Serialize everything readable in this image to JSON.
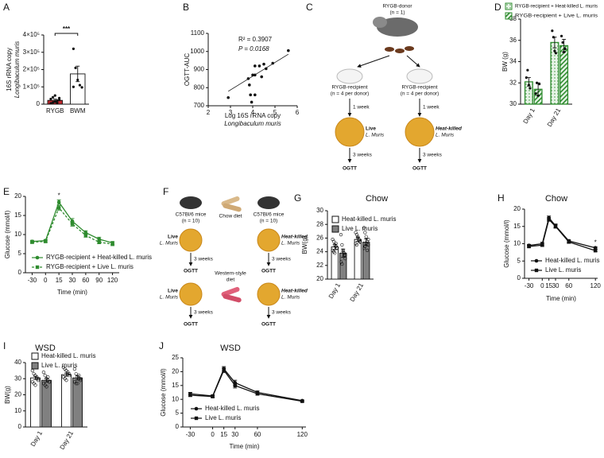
{
  "chart_data": [
    {
      "panel": "A",
      "type": "bar",
      "y_label": "16S rRNA copy",
      "y_label_2": "Longibaculum muris",
      "categories": [
        "RYGB",
        "BWM"
      ],
      "values": [
        22000,
        175000
      ],
      "errors": [
        7000,
        45000
      ],
      "colors": [
        "#c0282d",
        "#ffffff"
      ],
      "points": [
        [
          5000,
          10000,
          15000,
          20000,
          25000,
          30000,
          40000,
          50000,
          8000,
          35000
        ],
        [
          320000,
          210000,
          140000,
          110000,
          97000,
          100000
        ]
      ],
      "ylim": [
        0,
        400000
      ],
      "yticks": [
        0,
        {
          "value": 100000,
          "label": "1×10⁵"
        },
        {
          "value": 200000,
          "label": "2×10⁵"
        },
        {
          "value": 300000,
          "label": "3×10⁵"
        },
        {
          "value": 400000,
          "label": "4×10⁵"
        }
      ],
      "significance": {
        "text": "***"
      }
    },
    {
      "panel": "B",
      "type": "scatter",
      "x_label": "Log 16S rRNA copy",
      "x_label_2": "Longibaculum muris",
      "y_label": "OGTT-AUC",
      "x": [
        2.9,
        3.8,
        3.85,
        3.9,
        3.95,
        4.0,
        4.1,
        4.1,
        4.3,
        4.5,
        4.4,
        4.6,
        4.9,
        5.6,
        4.1
      ],
      "y": [
        745,
        850,
        815,
        760,
        720,
        870,
        870,
        920,
        920,
        930,
        860,
        905,
        935,
        1005,
        760
      ],
      "fit": {
        "x": [
          2.9,
          5.6
        ],
        "y": [
          780,
          985
        ]
      },
      "annotations": [
        "R² = 0.3907",
        "P = 0.0168"
      ],
      "xlim": [
        2,
        6
      ],
      "xticks": [
        2,
        3,
        4,
        5,
        6
      ],
      "ylim": [
        700,
        1100
      ],
      "yticks": [
        700,
        800,
        900,
        1000,
        1100
      ]
    },
    {
      "panel": "D",
      "type": "bar",
      "y_label": "BW (g)",
      "categories": [
        "Day 1",
        "Day 21"
      ],
      "series": [
        {
          "name": "RYGB-recipient + Heat-killed L. muris",
          "color": "#2e8b2e",
          "fill_style": "dots",
          "values": [
            32.1,
            35.8
          ],
          "errors": [
            0.4,
            0.5
          ],
          "points": [
            [
              32.5,
              33.2,
              31.8,
              31.5
            ],
            [
              36.9,
              36.3,
              35.0,
              34.8
            ]
          ]
        },
        {
          "name": "RYGB-recipient + Live L. muris",
          "color": "#2e8b2e",
          "fill_style": "hatch",
          "values": [
            31.4,
            35.5
          ],
          "errors": [
            0.6,
            0.6
          ],
          "points": [
            [
              31.0,
              32.0,
              30.8,
              31.9
            ],
            [
              36.4,
              35.8,
              34.9,
              35.2
            ]
          ]
        }
      ],
      "ylim": [
        30,
        38
      ],
      "yticks": [
        30,
        32,
        34,
        36,
        38
      ]
    },
    {
      "panel": "E",
      "type": "line",
      "y_label": "Glucose (mmol/l)",
      "x_label": "Time (min)",
      "categories": [
        "-30",
        "0",
        "15",
        "30",
        "60",
        "90",
        "120"
      ],
      "series": [
        {
          "name": "RYGB-recipient + Heat-killed L. muris",
          "color": "#2e8b2e",
          "marker": "circle",
          "dashed": false,
          "values": [
            8.2,
            8.4,
            18.5,
            13.5,
            10.5,
            8.8,
            7.8
          ],
          "errors": [
            0.3,
            0.3,
            0.6,
            0.7,
            0.5,
            0.5,
            0.4
          ]
        },
        {
          "name": "RYGB-recipient + Live L. muris",
          "color": "#2e8b2e",
          "marker": "square",
          "dashed": true,
          "values": [
            8.0,
            8.2,
            17.0,
            12.8,
            9.8,
            8.0,
            7.5
          ],
          "errors": [
            0.3,
            0.3,
            0.6,
            0.6,
            0.5,
            0.4,
            0.4
          ]
        }
      ],
      "ylim": [
        0,
        20
      ],
      "yticks": [
        0,
        5,
        10,
        15,
        20
      ],
      "significance": {
        "text": "*",
        "x": "15"
      }
    },
    {
      "panel": "G",
      "type": "bar",
      "title": "Chow",
      "y_label": "BW(g)",
      "categories": [
        "Day 1",
        "Day 21"
      ],
      "series": [
        {
          "name": "Heat-killed L. muris",
          "color": "#ffffff",
          "values": [
            24.7,
            25.8
          ],
          "errors": [
            0.4,
            0.3
          ],
          "points": [
            [
              25.8,
              25.5,
              25.0,
              24.8,
              24.5,
              24.2,
              24.0,
              23.8,
              25.2,
              24.6
            ],
            [
              26.8,
              26.5,
              26.0,
              25.8,
              25.5,
              25.2,
              25.0,
              26.2,
              25.6,
              25.4
            ]
          ]
        },
        {
          "name": "Live L. muris",
          "color": "#808080",
          "values": [
            23.8,
            25.4
          ],
          "errors": [
            0.6,
            0.5
          ],
          "points": [
            [
              26.5,
              25.0,
              24.2,
              23.5,
              23.0,
              22.5,
              22.2,
              24.0,
              23.8,
              23.5
            ],
            [
              27.5,
              26.8,
              26.2,
              25.5,
              25.0,
              24.5,
              24.8,
              25.2,
              24.2,
              25.8
            ]
          ]
        }
      ],
      "ylim": [
        20,
        30
      ],
      "yticks": [
        20,
        22,
        24,
        26,
        28,
        30
      ]
    },
    {
      "panel": "H",
      "type": "line",
      "title": "Chow",
      "y_label": "Glucose (mmol/l)",
      "x_label": "Time (min)",
      "x": [
        -30,
        0,
        15,
        30,
        60,
        120
      ],
      "series": [
        {
          "name": "Heat-killed L. muris",
          "color": "#111111",
          "marker": "circle",
          "dashed": false,
          "values": [
            9.5,
            10.0,
            17.5,
            15.2,
            10.8,
            8.8
          ],
          "errors": [
            0.3,
            0.4,
            0.5,
            0.5,
            0.4,
            0.3
          ]
        },
        {
          "name": "Live L. muris",
          "color": "#111111",
          "marker": "square",
          "dashed": false,
          "values": [
            9.2,
            9.6,
            17.0,
            15.0,
            10.5,
            8.0
          ],
          "errors": [
            0.3,
            0.4,
            0.5,
            0.5,
            0.4,
            0.3
          ]
        }
      ],
      "xlim": [
        -40,
        125
      ],
      "xticks": [
        -30,
        0,
        15,
        30,
        60,
        120
      ],
      "ylim": [
        0,
        20
      ],
      "yticks": [
        0,
        5,
        10,
        15,
        20
      ],
      "significance": {
        "text": "*",
        "x": 120
      }
    },
    {
      "panel": "I",
      "type": "bar",
      "title": "WSD",
      "y_label": "BW(g)",
      "categories": [
        "Day 1",
        "Day 21"
      ],
      "series": [
        {
          "name": "Heat-killed L. muris",
          "color": "#ffffff",
          "values": [
            30.5,
            32.5
          ],
          "errors": [
            1.0,
            1.0
          ],
          "points": [
            [
              35,
              33,
              32,
              30,
              29,
              28,
              27,
              26,
              31,
              30
            ],
            [
              37,
              36,
              35,
              33,
              32,
              31,
              30,
              29,
              34,
              33
            ]
          ]
        },
        {
          "name": "Live L. muris",
          "color": "#808080",
          "values": [
            29.0,
            30.5
          ],
          "errors": [
            1.2,
            1.3
          ],
          "points": [
            [
              34,
              32,
              30,
              29,
              28,
              27,
              26,
              25,
              31,
              28
            ],
            [
              36,
              33,
              31,
              30,
              29,
              28,
              27,
              27,
              32,
              30
            ]
          ]
        }
      ],
      "ylim": [
        0,
        40
      ],
      "yticks": [
        0,
        10,
        20,
        30,
        40
      ]
    },
    {
      "panel": "J",
      "type": "line",
      "title": "WSD",
      "y_label": "Glucose (mmol/l)",
      "x_label": "Time (min)",
      "x": [
        -30,
        0,
        15,
        30,
        60,
        120
      ],
      "series": [
        {
          "name": "Heat-killed L. muris",
          "color": "#111111",
          "marker": "circle",
          "dashed": false,
          "values": [
            12.0,
            11.2,
            21.0,
            16.0,
            12.5,
            9.5
          ],
          "errors": [
            0.5,
            0.4,
            0.8,
            0.9,
            0.5,
            0.3
          ]
        },
        {
          "name": "Live L. muris",
          "color": "#111111",
          "marker": "square",
          "dashed": false,
          "values": [
            11.5,
            11.0,
            20.5,
            15.0,
            12.0,
            9.3
          ],
          "errors": [
            0.5,
            0.4,
            0.8,
            0.9,
            0.5,
            0.3
          ]
        }
      ],
      "xlim": [
        -40,
        125
      ],
      "xticks": [
        -30,
        0,
        15,
        30,
        60,
        120
      ],
      "ylim": [
        0,
        25
      ],
      "yticks": [
        0,
        5,
        10,
        15,
        20,
        25
      ]
    }
  ],
  "diagrams": [
    {
      "panel": "C",
      "donor": "RYGB-donor",
      "donor_n": "(n = 1)",
      "arms": [
        {
          "recipient": "RYGB-recipient",
          "n": "(n = 4 per donor)",
          "step1": "1 week",
          "treatment": "Live",
          "strain": "L. Muris",
          "step2": "3 weeks",
          "test": "OGTT"
        },
        {
          "recipient": "RYGB-recipient",
          "n": "(n = 4 per donor)",
          "step1": "1 week",
          "treatment": "Heat-killed",
          "strain": "L. Muris",
          "step2": "3 weeks",
          "test": "OGTT"
        }
      ]
    },
    {
      "panel": "F",
      "diet1": "Chow diet",
      "diet2": "Western-style",
      "diet2_b": "diet",
      "arms": [
        {
          "mice": "C57Bl/6 mice",
          "n": "(n = 10)",
          "treatment": "Live",
          "strain": "L. Muris",
          "step1": "3 weeks",
          "test1": "OGTT",
          "treatment2": "Live",
          "strain2": "L. Muris",
          "step2": "3 weeks",
          "test2": "OGTT"
        },
        {
          "mice": "C57Bl/6 mice",
          "n": "(n = 10)",
          "treatment": "Heat-killed",
          "strain": "L. Muris",
          "step1": "3 weeks",
          "test1": "OGTT",
          "treatment2": "Heat-killed",
          "strain2": "L. Muris",
          "step2": "3 weeks",
          "test2": "OGTT"
        }
      ]
    }
  ]
}
